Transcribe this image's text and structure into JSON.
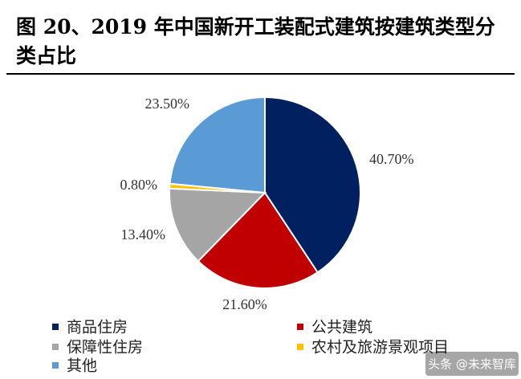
{
  "chart_data": {
    "type": "pie",
    "title": "图 20、2019 年中国新开工装配式建筑按建筑类型分类占比",
    "categories": [
      "商品住房",
      "公共建筑",
      "保障性住房",
      "农村及旅游景观项目",
      "其他"
    ],
    "values": [
      40.7,
      21.6,
      13.4,
      0.8,
      23.5
    ],
    "value_labels": [
      "40.70%",
      "21.60%",
      "13.40%",
      "0.80%",
      "23.50%"
    ],
    "colors": [
      "#002060",
      "#c00000",
      "#a5a5a5",
      "#ffc000",
      "#5b9bd5"
    ],
    "legend": "bottom",
    "watermark": "头条 @未来智库"
  }
}
